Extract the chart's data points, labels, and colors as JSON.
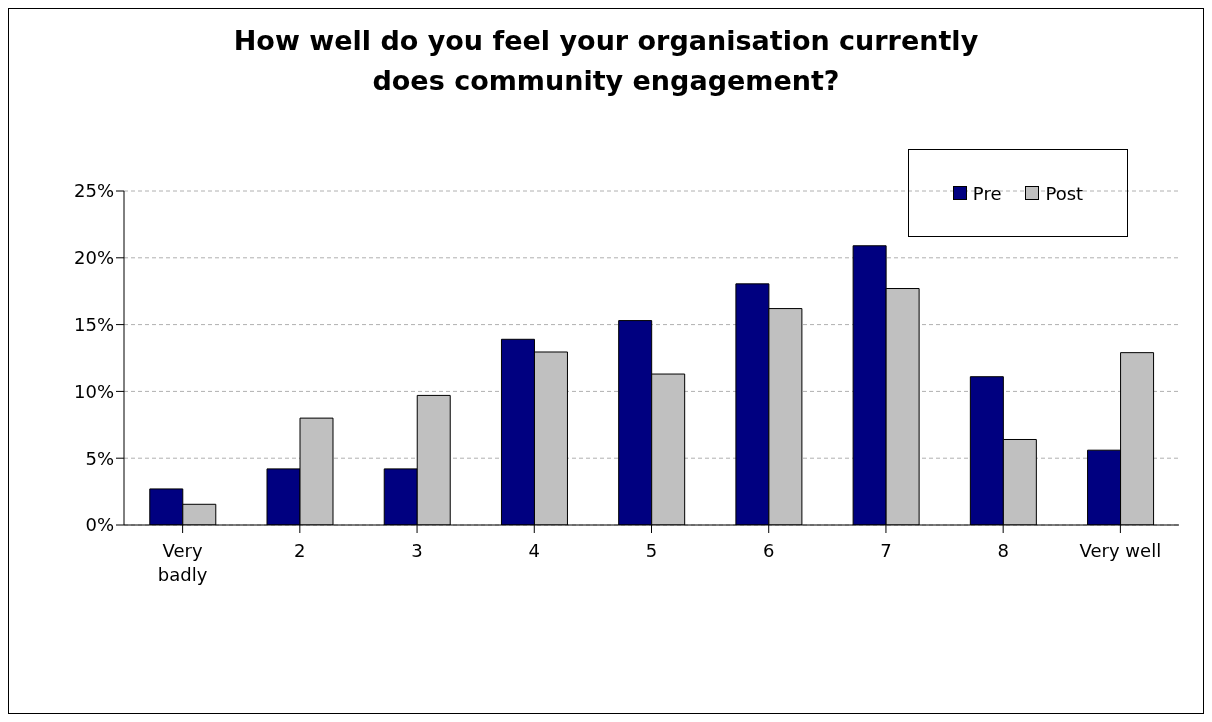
{
  "chart_data": {
    "type": "bar",
    "title": "How well do you feel your organisation currently does community engagement?",
    "categories": [
      "Very badly",
      "2",
      "3",
      "4",
      "5",
      "6",
      "7",
      "8",
      "Very well"
    ],
    "series": [
      {
        "name": "Pre",
        "color": "#000080",
        "values": [
          2.7,
          4.2,
          4.2,
          13.9,
          15.3,
          18.05,
          20.9,
          11.1,
          5.6
        ]
      },
      {
        "name": "Post",
        "color": "#c0c0c0",
        "values": [
          1.55,
          8.0,
          9.7,
          12.95,
          11.3,
          16.2,
          17.7,
          6.4,
          12.9
        ]
      }
    ],
    "ylim": [
      0,
      25
    ],
    "yticks": [
      {
        "value": 0,
        "label": "0%"
      },
      {
        "value": 5,
        "label": "5%"
      },
      {
        "value": 10,
        "label": "10%"
      },
      {
        "value": 15,
        "label": "15%"
      },
      {
        "value": 20,
        "label": "20%"
      },
      {
        "value": 25,
        "label": "25%"
      }
    ],
    "grid": "y",
    "legend": "top right"
  }
}
